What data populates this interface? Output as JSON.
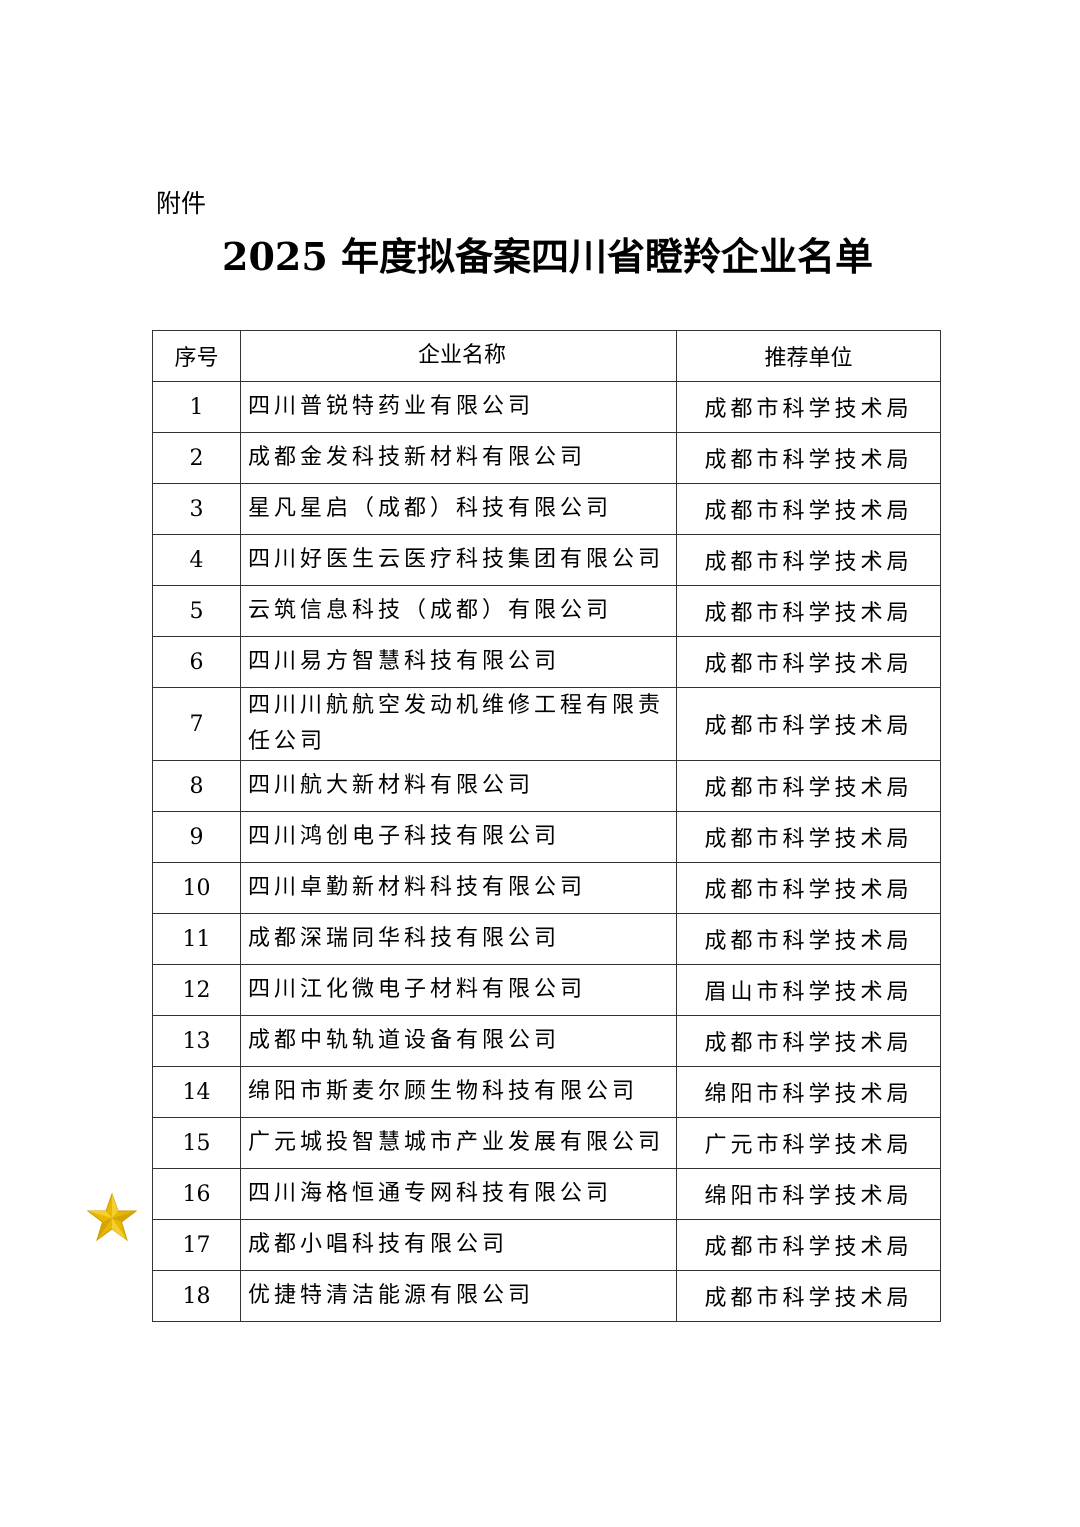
{
  "attachment_label": "附件",
  "title": "2025 年度拟备案四川省瞪羚企业名单",
  "table": {
    "headers": [
      "序号",
      "企业名称",
      "推荐单位"
    ],
    "rows": [
      {
        "no": "1",
        "name": "四川普锐特药业有限公司",
        "unit": "成都市科学技术局"
      },
      {
        "no": "2",
        "name": "成都金发科技新材料有限公司",
        "unit": "成都市科学技术局"
      },
      {
        "no": "3",
        "name": "星凡星启（成都）科技有限公司",
        "unit": "成都市科学技术局"
      },
      {
        "no": "4",
        "name": "四川好医生云医疗科技集团有限公司",
        "unit": "成都市科学技术局"
      },
      {
        "no": "5",
        "name": "云筑信息科技（成都）有限公司",
        "unit": "成都市科学技术局"
      },
      {
        "no": "6",
        "name": "四川易方智慧科技有限公司",
        "unit": "成都市科学技术局"
      },
      {
        "no": "7",
        "name": "四川川航航空发动机维修工程有限责任公司",
        "unit": "成都市科学技术局"
      },
      {
        "no": "8",
        "name": "四川航大新材料有限公司",
        "unit": "成都市科学技术局"
      },
      {
        "no": "9",
        "name": "四川鸿创电子科技有限公司",
        "unit": "成都市科学技术局"
      },
      {
        "no": "10",
        "name": "四川卓勤新材料科技有限公司",
        "unit": "成都市科学技术局"
      },
      {
        "no": "11",
        "name": "成都深瑞同华科技有限公司",
        "unit": "成都市科学技术局"
      },
      {
        "no": "12",
        "name": "四川江化微电子材料有限公司",
        "unit": "眉山市科学技术局"
      },
      {
        "no": "13",
        "name": "成都中轨轨道设备有限公司",
        "unit": "成都市科学技术局"
      },
      {
        "no": "14",
        "name": "绵阳市斯麦尔顾生物科技有限公司",
        "unit": "绵阳市科学技术局"
      },
      {
        "no": "15",
        "name": "广元城投智慧城市产业发展有限公司",
        "unit": "广元市科学技术局"
      },
      {
        "no": "16",
        "name": "四川海格恒通专网科技有限公司",
        "unit": "绵阳市科学技术局"
      },
      {
        "no": "17",
        "name": "成都小唱科技有限公司",
        "unit": "成都市科学技术局"
      },
      {
        "no": "18",
        "name": "优捷特清洁能源有限公司",
        "unit": "成都市科学技术局"
      }
    ]
  },
  "star_icon": {
    "name": "star-icon",
    "color": "#E8B800"
  }
}
